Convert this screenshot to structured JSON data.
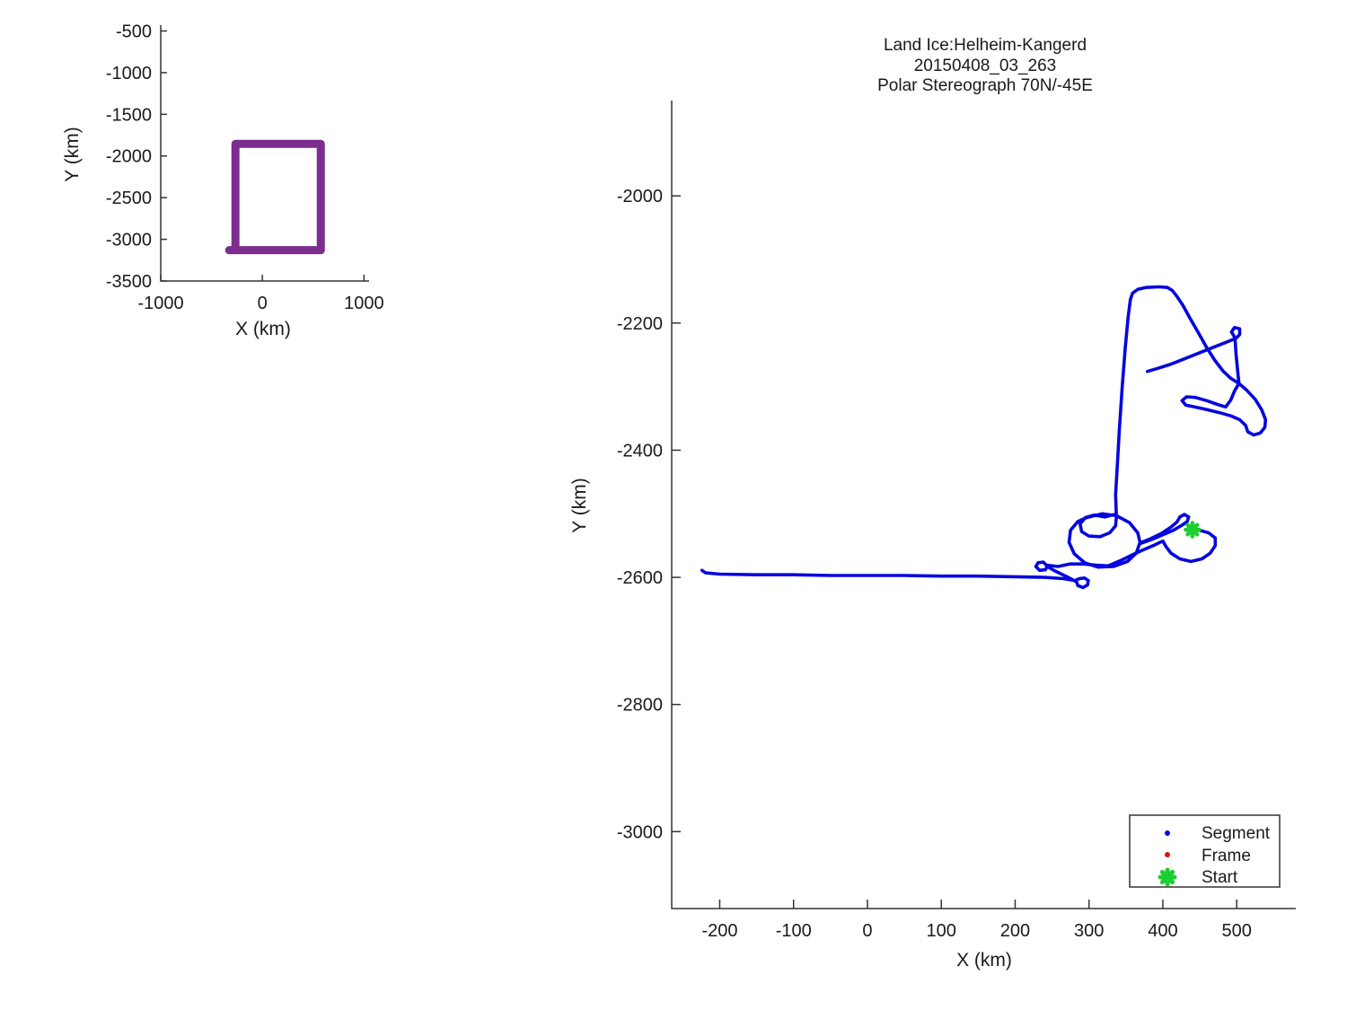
{
  "title": {
    "line1": "Land Ice:Helheim-Kangerd",
    "line2": "20150408_03_263",
    "line3": "Polar Stereograph 70N/-45E"
  },
  "colors": {
    "track": "#0606DE",
    "frame": "#DD1111",
    "start": "#1BCE31",
    "overview_box": "#7B2E8E",
    "axis": "#333333",
    "text": "#1a1a1a"
  },
  "overview": {
    "xlabel": "X (km)",
    "ylabel": "Y (km)",
    "xticks": [
      -1000,
      0,
      1000
    ],
    "yticks": [
      -500,
      -1000,
      -1500,
      -2000,
      -2500,
      -3000,
      -3500
    ],
    "xlim": [
      -1000,
      1050
    ],
    "ylim": [
      -3500,
      -430
    ]
  },
  "main": {
    "xlabel": "X (km)",
    "ylabel": "Y (km)",
    "xticks": [
      -200,
      -100,
      0,
      100,
      200,
      300,
      400,
      500
    ],
    "yticks": [
      -2000,
      -2200,
      -2400,
      -2600,
      -2800,
      -3000
    ],
    "xlim": [
      -265,
      580
    ],
    "ylim": [
      -3121,
      -1850
    ]
  },
  "legend": {
    "items": [
      {
        "label": "Segment",
        "marker": "dot",
        "color": "#0606DE"
      },
      {
        "label": "Frame",
        "marker": "dot",
        "color": "#DD1111"
      },
      {
        "label": "Start",
        "marker": "asterisk",
        "color": "#1BCE31"
      }
    ]
  },
  "chart_data": {
    "type": "line",
    "units": "km",
    "overview_box": {
      "x": [
        -265,
        575
      ],
      "y": [
        -1855,
        -3130
      ]
    },
    "start_point": [
      440,
      -2525
    ],
    "track_segments": [
      [
        [
          -224,
          -2589
        ],
        [
          -219,
          -2593
        ],
        [
          -200,
          -2595
        ],
        [
          -150,
          -2596
        ],
        [
          -100,
          -2596
        ],
        [
          -50,
          -2597
        ],
        [
          0,
          -2597
        ],
        [
          50,
          -2597
        ],
        [
          100,
          -2598
        ],
        [
          150,
          -2598
        ],
        [
          200,
          -2599
        ],
        [
          240,
          -2600
        ],
        [
          265,
          -2602
        ],
        [
          281,
          -2605
        ],
        [
          287,
          -2602
        ],
        [
          294,
          -2601
        ],
        [
          299,
          -2605
        ],
        [
          298,
          -2612
        ],
        [
          292,
          -2616
        ],
        [
          285,
          -2613
        ],
        [
          283,
          -2607
        ],
        [
          270,
          -2599
        ],
        [
          254,
          -2590
        ],
        [
          245,
          -2584
        ],
        [
          238,
          -2576
        ],
        [
          231,
          -2577
        ],
        [
          228,
          -2583
        ],
        [
          233,
          -2589
        ],
        [
          241,
          -2588
        ],
        [
          244,
          -2581
        ],
        [
          258,
          -2583
        ],
        [
          274,
          -2579
        ],
        [
          292,
          -2579
        ],
        [
          310,
          -2581
        ],
        [
          326,
          -2582
        ],
        [
          342,
          -2574
        ],
        [
          358,
          -2565
        ],
        [
          373,
          -2557
        ],
        [
          387,
          -2550
        ],
        [
          396,
          -2545
        ],
        [
          400,
          -2543
        ]
      ],
      [
        [
          400,
          -2543
        ],
        [
          404,
          -2551
        ],
        [
          411,
          -2562
        ],
        [
          423,
          -2571
        ],
        [
          438,
          -2575
        ],
        [
          453,
          -2571
        ],
        [
          464,
          -2562
        ],
        [
          471,
          -2550
        ],
        [
          471,
          -2538
        ],
        [
          462,
          -2530
        ],
        [
          450,
          -2526
        ],
        [
          441,
          -2524
        ]
      ],
      [
        [
          369,
          -2546
        ],
        [
          382,
          -2540
        ],
        [
          398,
          -2531
        ],
        [
          411,
          -2521
        ],
        [
          419,
          -2513
        ],
        [
          423,
          -2505
        ],
        [
          429,
          -2501
        ],
        [
          435,
          -2505
        ],
        [
          433,
          -2512
        ],
        [
          426,
          -2518
        ],
        [
          414,
          -2526
        ],
        [
          400,
          -2533
        ],
        [
          386,
          -2540
        ],
        [
          374,
          -2545
        ],
        [
          369,
          -2547
        ]
      ],
      [
        [
          297,
          -2506
        ],
        [
          318,
          -2500
        ],
        [
          337,
          -2503
        ],
        [
          355,
          -2514
        ],
        [
          366,
          -2530
        ],
        [
          369,
          -2545
        ],
        [
          364,
          -2562
        ],
        [
          352,
          -2575
        ],
        [
          333,
          -2583
        ],
        [
          312,
          -2584
        ],
        [
          294,
          -2577
        ],
        [
          280,
          -2563
        ],
        [
          273,
          -2545
        ],
        [
          275,
          -2526
        ],
        [
          285,
          -2512
        ],
        [
          297,
          -2506
        ]
      ],
      [
        [
          337,
          -2500
        ],
        [
          322,
          -2505
        ],
        [
          307,
          -2502
        ],
        [
          295,
          -2506
        ],
        [
          288,
          -2516
        ],
        [
          290,
          -2528
        ],
        [
          300,
          -2535
        ],
        [
          315,
          -2536
        ],
        [
          328,
          -2530
        ],
        [
          336,
          -2519
        ],
        [
          337,
          -2507
        ],
        [
          337,
          -2500
        ],
        [
          336,
          -2470
        ],
        [
          338,
          -2430
        ],
        [
          341,
          -2370
        ],
        [
          345,
          -2300
        ],
        [
          349,
          -2240
        ],
        [
          353,
          -2190
        ],
        [
          356,
          -2163
        ],
        [
          359,
          -2153
        ],
        [
          366,
          -2147
        ],
        [
          377,
          -2144
        ],
        [
          395,
          -2143
        ],
        [
          406,
          -2144
        ],
        [
          413,
          -2149
        ],
        [
          419,
          -2158
        ],
        [
          427,
          -2172
        ],
        [
          437,
          -2193
        ],
        [
          448,
          -2215
        ],
        [
          459,
          -2238
        ],
        [
          470,
          -2258
        ],
        [
          481,
          -2275
        ],
        [
          492,
          -2287
        ],
        [
          503,
          -2295
        ],
        [
          513,
          -2305
        ],
        [
          525,
          -2320
        ],
        [
          534,
          -2337
        ],
        [
          539,
          -2352
        ],
        [
          538,
          -2364
        ],
        [
          532,
          -2373
        ],
        [
          523,
          -2376
        ],
        [
          515,
          -2371
        ],
        [
          512,
          -2361
        ],
        [
          504,
          -2352
        ],
        [
          492,
          -2346
        ],
        [
          477,
          -2341
        ],
        [
          459,
          -2336
        ],
        [
          443,
          -2332
        ],
        [
          431,
          -2329
        ],
        [
          426,
          -2322
        ],
        [
          432,
          -2316
        ],
        [
          444,
          -2317
        ],
        [
          459,
          -2322
        ],
        [
          474,
          -2328
        ],
        [
          485,
          -2332
        ],
        [
          492,
          -2321
        ],
        [
          497,
          -2307
        ],
        [
          503,
          -2295
        ],
        [
          501,
          -2272
        ],
        [
          499,
          -2248
        ],
        [
          498,
          -2230
        ],
        [
          497,
          -2222
        ],
        [
          493,
          -2214
        ],
        [
          497,
          -2207
        ],
        [
          504,
          -2209
        ],
        [
          504,
          -2218
        ],
        [
          499,
          -2224
        ],
        [
          484,
          -2231
        ],
        [
          462,
          -2241
        ],
        [
          436,
          -2253
        ],
        [
          410,
          -2265
        ],
        [
          391,
          -2272
        ],
        [
          379,
          -2276
        ]
      ]
    ]
  }
}
